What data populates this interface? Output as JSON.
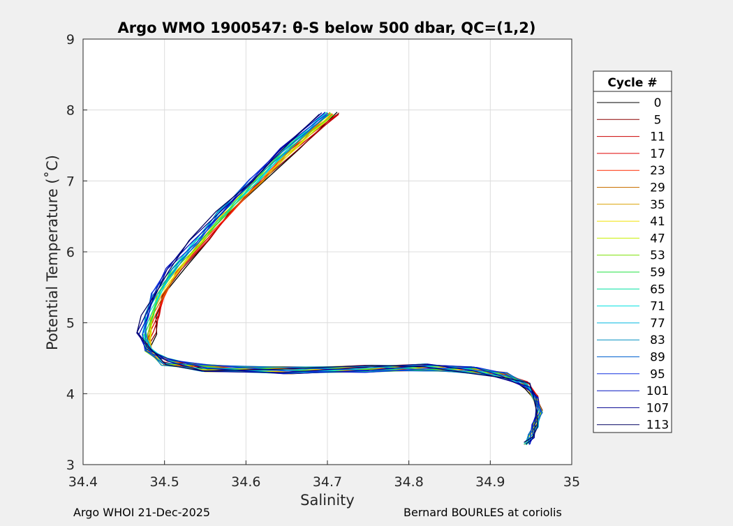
{
  "chart_data": {
    "type": "line",
    "title": "Argo WMO 1900547: θ-S below 500 dbar,  QC=(1,2)",
    "xlabel": "Salinity",
    "ylabel": "Potential Temperature (˚C)",
    "xlim": [
      34.4,
      35.0
    ],
    "ylim": [
      3,
      9
    ],
    "xticks": [
      34.4,
      34.5,
      34.6,
      34.7,
      34.8,
      34.9,
      35.0
    ],
    "xtick_labels": [
      "34.4",
      "34.5",
      "34.6",
      "34.7",
      "34.8",
      "34.9",
      "35"
    ],
    "yticks": [
      3,
      4,
      5,
      6,
      7,
      8,
      9
    ],
    "ytick_labels": [
      "3",
      "4",
      "5",
      "6",
      "7",
      "8",
      "9"
    ],
    "grid": true,
    "legend": {
      "title": "Cycle #",
      "placement": "right-outside",
      "entries": [
        {
          "label": "0",
          "color": "#000000"
        },
        {
          "label": "5",
          "color": "#8b0000"
        },
        {
          "label": "11",
          "color": "#cc0000"
        },
        {
          "label": "17",
          "color": "#e00000"
        },
        {
          "label": "23",
          "color": "#ff2a00"
        },
        {
          "label": "29",
          "color": "#c87000"
        },
        {
          "label": "35",
          "color": "#d9a000"
        },
        {
          "label": "41",
          "color": "#f0e000"
        },
        {
          "label": "47",
          "color": "#c8f000"
        },
        {
          "label": "53",
          "color": "#7ae000"
        },
        {
          "label": "59",
          "color": "#20e040"
        },
        {
          "label": "65",
          "color": "#00e0a0"
        },
        {
          "label": "71",
          "color": "#00e0e0"
        },
        {
          "label": "77",
          "color": "#00b8e0"
        },
        {
          "label": "83",
          "color": "#0090c0"
        },
        {
          "label": "89",
          "color": "#0060d0"
        },
        {
          "label": "95",
          "color": "#1030e0"
        },
        {
          "label": "101",
          "color": "#0010c0"
        },
        {
          "label": "107",
          "color": "#000090"
        },
        {
          "label": "113",
          "color": "#000060"
        }
      ]
    },
    "base_profile": {
      "salinity": [
        34.7,
        34.65,
        34.61,
        34.57,
        34.54,
        34.51,
        34.49,
        34.48,
        34.475,
        34.48,
        34.5,
        34.55,
        34.65,
        34.75,
        34.82,
        34.88,
        34.92,
        34.945,
        34.955,
        34.96,
        34.955,
        34.95,
        34.945
      ],
      "theta": [
        7.95,
        7.45,
        7.0,
        6.55,
        6.15,
        5.75,
        5.4,
        5.1,
        4.85,
        4.62,
        4.45,
        4.36,
        4.33,
        4.35,
        4.37,
        4.33,
        4.25,
        4.12,
        3.95,
        3.75,
        3.55,
        3.4,
        3.3
      ]
    }
  },
  "footer": {
    "left": "Argo WHOI 21-Dec-2025",
    "right": "Bernard BOURLES at coriolis"
  }
}
